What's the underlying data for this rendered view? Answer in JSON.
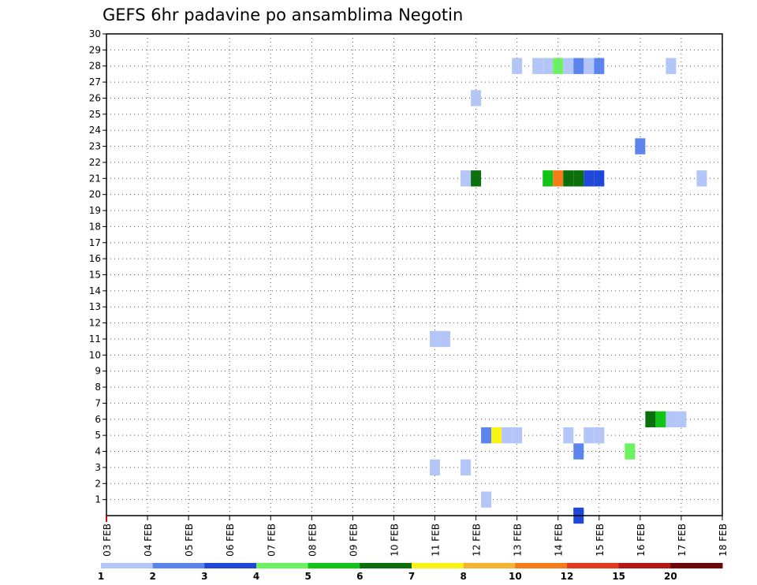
{
  "chart_data": {
    "type": "heatmap",
    "title": "GEFS 6hr padavine po ansamblima Negotin",
    "xlabel": "",
    "ylabel": "",
    "x_ticks": [
      "03 FEB",
      "04 FEB",
      "05 FEB",
      "06 FEB",
      "07 FEB",
      "08 FEB",
      "09 FEB",
      "10 FEB",
      "11 FEB",
      "12 FEB",
      "13 FEB",
      "14 FEB",
      "15 FEB",
      "16 FEB",
      "17 FEB",
      "18 FEB"
    ],
    "y_ticks": [
      "1",
      "2",
      "3",
      "4",
      "5",
      "6",
      "7",
      "8",
      "9",
      "10",
      "11",
      "12",
      "13",
      "14",
      "15",
      "16",
      "17",
      "18",
      "19",
      "20",
      "21",
      "22",
      "23",
      "24",
      "25",
      "26",
      "27",
      "28",
      "29",
      "30"
    ],
    "xlim_days": [
      0,
      15
    ],
    "ylim": [
      0,
      30
    ],
    "grid": true,
    "colorbar": {
      "tick_labels": [
        "1",
        "2",
        "3",
        "4",
        "5",
        "6",
        "7",
        "8",
        "10",
        "12",
        "15",
        "20"
      ],
      "colors": [
        "#b3c6f7",
        "#5b85ec",
        "#1f48d9",
        "#6cf261",
        "#12c318",
        "#0b6f0b",
        "#f7f312",
        "#f6b233",
        "#f57c1a",
        "#e13a1c",
        "#b51717",
        "#6e0707"
      ]
    },
    "cells_note_ignored": "",
    "cells": [
      {
        "member": 0,
        "day": 11.5,
        "c": 2
      },
      {
        "member": 1,
        "day": 9.25,
        "c": 0
      },
      {
        "member": 3,
        "day": 8.0,
        "c": 0
      },
      {
        "member": 3,
        "day": 8.75,
        "c": 0
      },
      {
        "member": 4,
        "day": 11.5,
        "c": 1
      },
      {
        "member": 4,
        "day": 12.75,
        "c": 3
      },
      {
        "member": 5,
        "day": 9.25,
        "c": 1
      },
      {
        "member": 5,
        "day": 9.5,
        "c": 6
      },
      {
        "member": 5,
        "day": 9.75,
        "c": 0
      },
      {
        "member": 5,
        "day": 10.0,
        "c": 0
      },
      {
        "member": 5,
        "day": 11.25,
        "c": 0
      },
      {
        "member": 5,
        "day": 11.75,
        "c": 0
      },
      {
        "member": 5,
        "day": 12.0,
        "c": 0
      },
      {
        "member": 6,
        "day": 13.25,
        "c": 5
      },
      {
        "member": 6,
        "day": 13.5,
        "c": 4
      },
      {
        "member": 6,
        "day": 13.75,
        "c": 0
      },
      {
        "member": 6,
        "day": 14.0,
        "c": 0
      },
      {
        "member": 11,
        "day": 8.0,
        "c": 0
      },
      {
        "member": 11,
        "day": 8.25,
        "c": 0
      },
      {
        "member": 21,
        "day": 8.75,
        "c": 0
      },
      {
        "member": 21,
        "day": 9.0,
        "c": 5
      },
      {
        "member": 21,
        "day": 10.75,
        "c": 4
      },
      {
        "member": 21,
        "day": 11.0,
        "c": 8
      },
      {
        "member": 21,
        "day": 11.25,
        "c": 5
      },
      {
        "member": 21,
        "day": 11.5,
        "c": 5
      },
      {
        "member": 21,
        "day": 11.75,
        "c": 2
      },
      {
        "member": 21,
        "day": 12.0,
        "c": 2
      },
      {
        "member": 21,
        "day": 14.5,
        "c": 0
      },
      {
        "member": 23,
        "day": 13.0,
        "c": 1
      },
      {
        "member": 26,
        "day": 9.0,
        "c": 0
      },
      {
        "member": 28,
        "day": 10.0,
        "c": 0
      },
      {
        "member": 28,
        "day": 10.5,
        "c": 0
      },
      {
        "member": 28,
        "day": 10.75,
        "c": 0
      },
      {
        "member": 28,
        "day": 11.0,
        "c": 3
      },
      {
        "member": 28,
        "day": 11.25,
        "c": 0
      },
      {
        "member": 28,
        "day": 11.5,
        "c": 1
      },
      {
        "member": 28,
        "day": 11.75,
        "c": 0
      },
      {
        "member": 28,
        "day": 12.0,
        "c": 1
      },
      {
        "member": 28,
        "day": 13.75,
        "c": 0
      },
      {
        "member": 0,
        "day": 11.5,
        "c": 2,
        "row": "bottom"
      }
    ]
  }
}
